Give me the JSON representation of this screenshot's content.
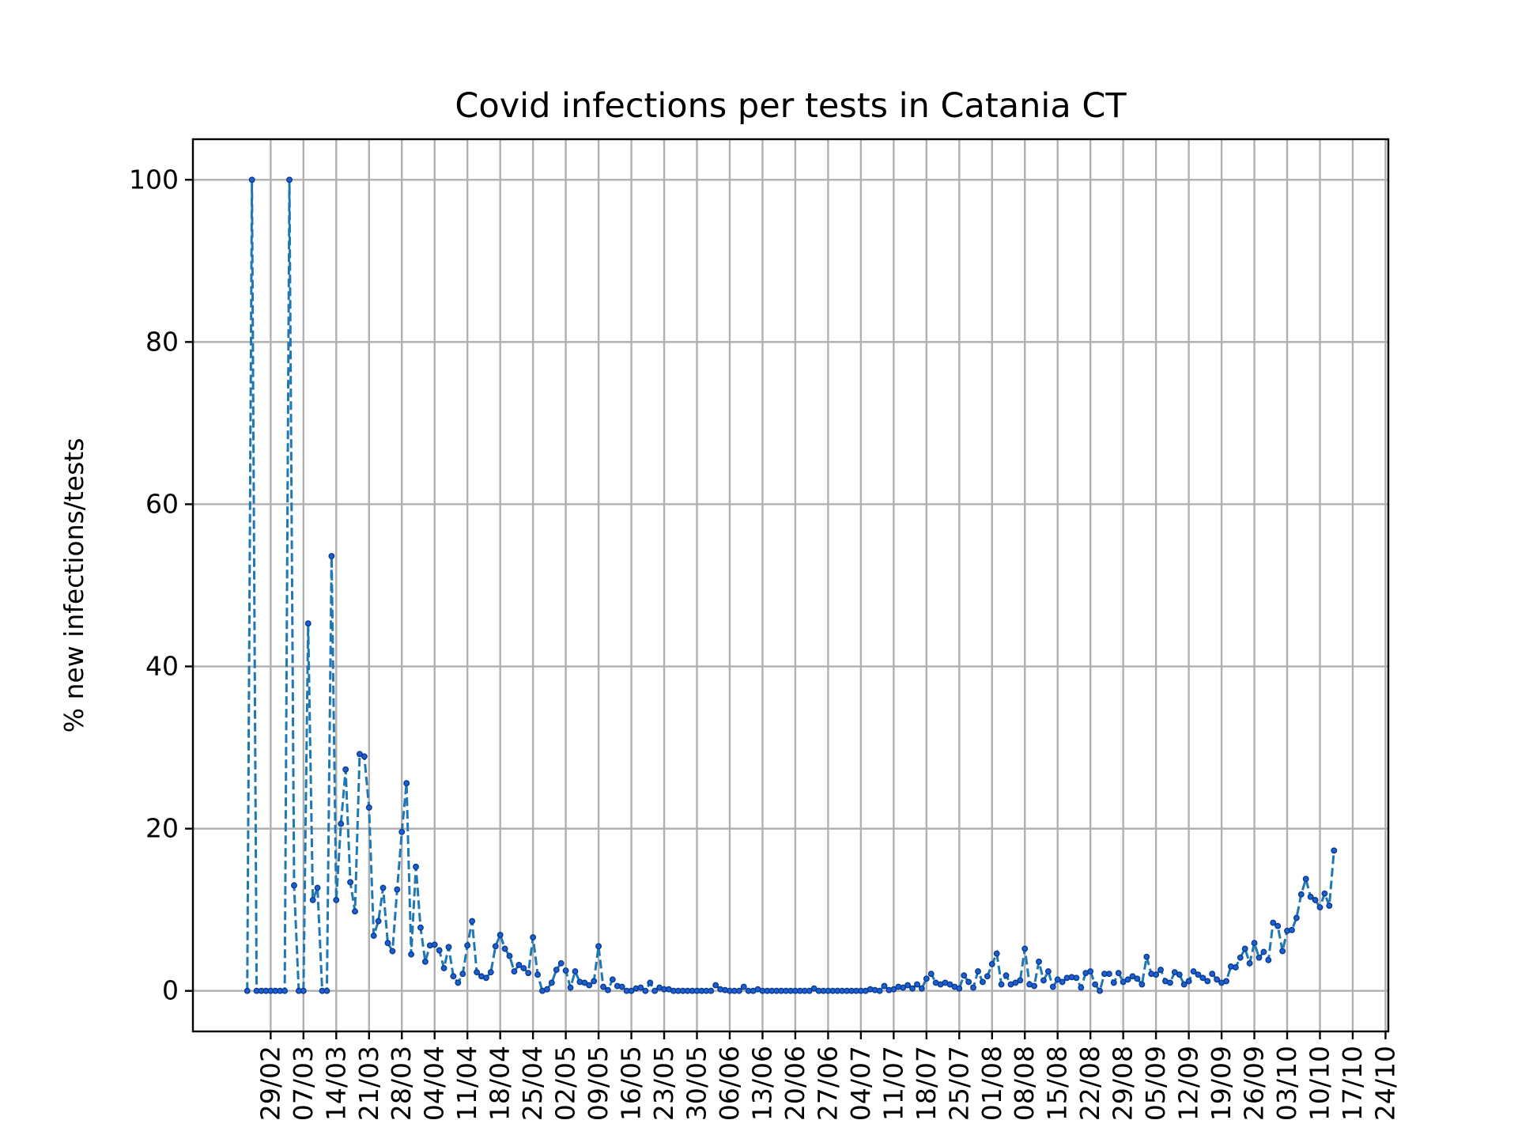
{
  "chart_data": {
    "type": "line",
    "title": "Covid infections per tests in Catania CT",
    "xlabel": "",
    "ylabel": "% new infections/tests",
    "ylim": [
      -5,
      105
    ],
    "yticks": [
      0,
      20,
      40,
      60,
      80,
      100
    ],
    "xticks": [
      "29/02",
      "07/03",
      "14/03",
      "21/03",
      "28/03",
      "04/04",
      "11/04",
      "18/04",
      "25/04",
      "02/05",
      "09/05",
      "16/05",
      "23/05",
      "30/05",
      "06/06",
      "13/06",
      "20/06",
      "27/06",
      "04/07",
      "11/07",
      "18/07",
      "25/07",
      "01/08",
      "08/08",
      "15/08",
      "22/08",
      "29/08",
      "05/09",
      "12/09",
      "19/09",
      "26/09",
      "03/10",
      "10/10",
      "17/10",
      "24/10"
    ],
    "grid": true,
    "legend": "none",
    "colors": {
      "line": "#1f77b4",
      "marker": "#1f5fd6"
    },
    "series": [
      {
        "start_date": "24/02",
        "values": [
          0,
          100,
          0,
          0,
          0,
          0,
          0,
          0,
          0,
          100,
          13,
          0,
          0,
          45.3,
          11.2,
          12.7,
          0,
          0,
          53.6,
          11.2,
          20.6,
          27.3,
          13.4,
          9.8,
          29.2,
          28.9,
          22.6,
          6.8,
          8.6,
          12.7,
          5.9,
          4.9,
          12.5,
          19.6,
          25.6,
          4.5,
          15.3,
          7.8,
          3.6,
          5.6,
          5.7,
          5,
          2.8,
          5.4,
          1.8,
          1,
          2.1,
          5.6,
          8.6,
          2.3,
          1.8,
          1.6,
          2.3,
          5.5,
          6.9,
          5.2,
          4.3,
          2.4,
          3.2,
          2.8,
          2.2,
          6.6,
          2,
          0,
          0.2,
          1,
          2.6,
          3.4,
          2.5,
          0.4,
          2.4,
          1.1,
          1,
          0.7,
          1.2,
          5.5,
          0.5,
          0.1,
          1.4,
          0.6,
          0.5,
          0,
          0,
          0.3,
          0.4,
          0,
          1,
          0,
          0.4,
          0.2,
          0.2,
          0,
          0,
          0,
          0,
          0,
          0,
          0,
          0,
          0,
          0.7,
          0.2,
          0.1,
          0,
          0,
          0,
          0.5,
          0,
          0,
          0.2,
          0,
          0,
          0,
          0,
          0,
          0,
          0,
          0,
          0,
          0,
          0,
          0.3,
          0,
          0,
          0,
          0,
          0,
          0,
          0,
          0,
          0,
          0,
          0,
          0.2,
          0.1,
          0,
          0.6,
          0.1,
          0.2,
          0.5,
          0.4,
          0.7,
          0.3,
          0.8,
          0.3,
          1.5,
          2.1,
          1,
          0.8,
          1,
          0.8,
          0.5,
          0.3,
          1.9,
          1.1,
          0.4,
          2.4,
          1.1,
          1.8,
          3.3,
          4.6,
          0.8,
          1.9,
          0.8,
          1,
          1.3,
          5.2,
          0.8,
          0.6,
          3.6,
          1.3,
          2.4,
          0.5,
          1.4,
          1.1,
          1.6,
          1.7,
          1.6,
          0.4,
          2.2,
          2.4,
          0.8,
          0,
          2.1,
          2.1,
          1,
          2.2,
          1.1,
          1.4,
          1.8,
          1.5,
          0.8,
          4.2,
          2.1,
          2,
          2.6,
          1.2,
          1,
          2.3,
          2,
          0.8,
          1.2,
          2.4,
          2,
          1.6,
          1.2,
          2.1,
          1.4,
          1,
          1.2,
          3,
          2.9,
          4.1,
          5.2,
          3.4,
          5.9,
          4.1,
          4.8,
          3.8,
          8.4,
          8,
          4.9,
          7.4,
          7.5,
          9,
          11.9,
          13.8,
          11.6,
          11.2,
          10.3,
          12,
          10.5,
          17.3
        ]
      }
    ]
  }
}
